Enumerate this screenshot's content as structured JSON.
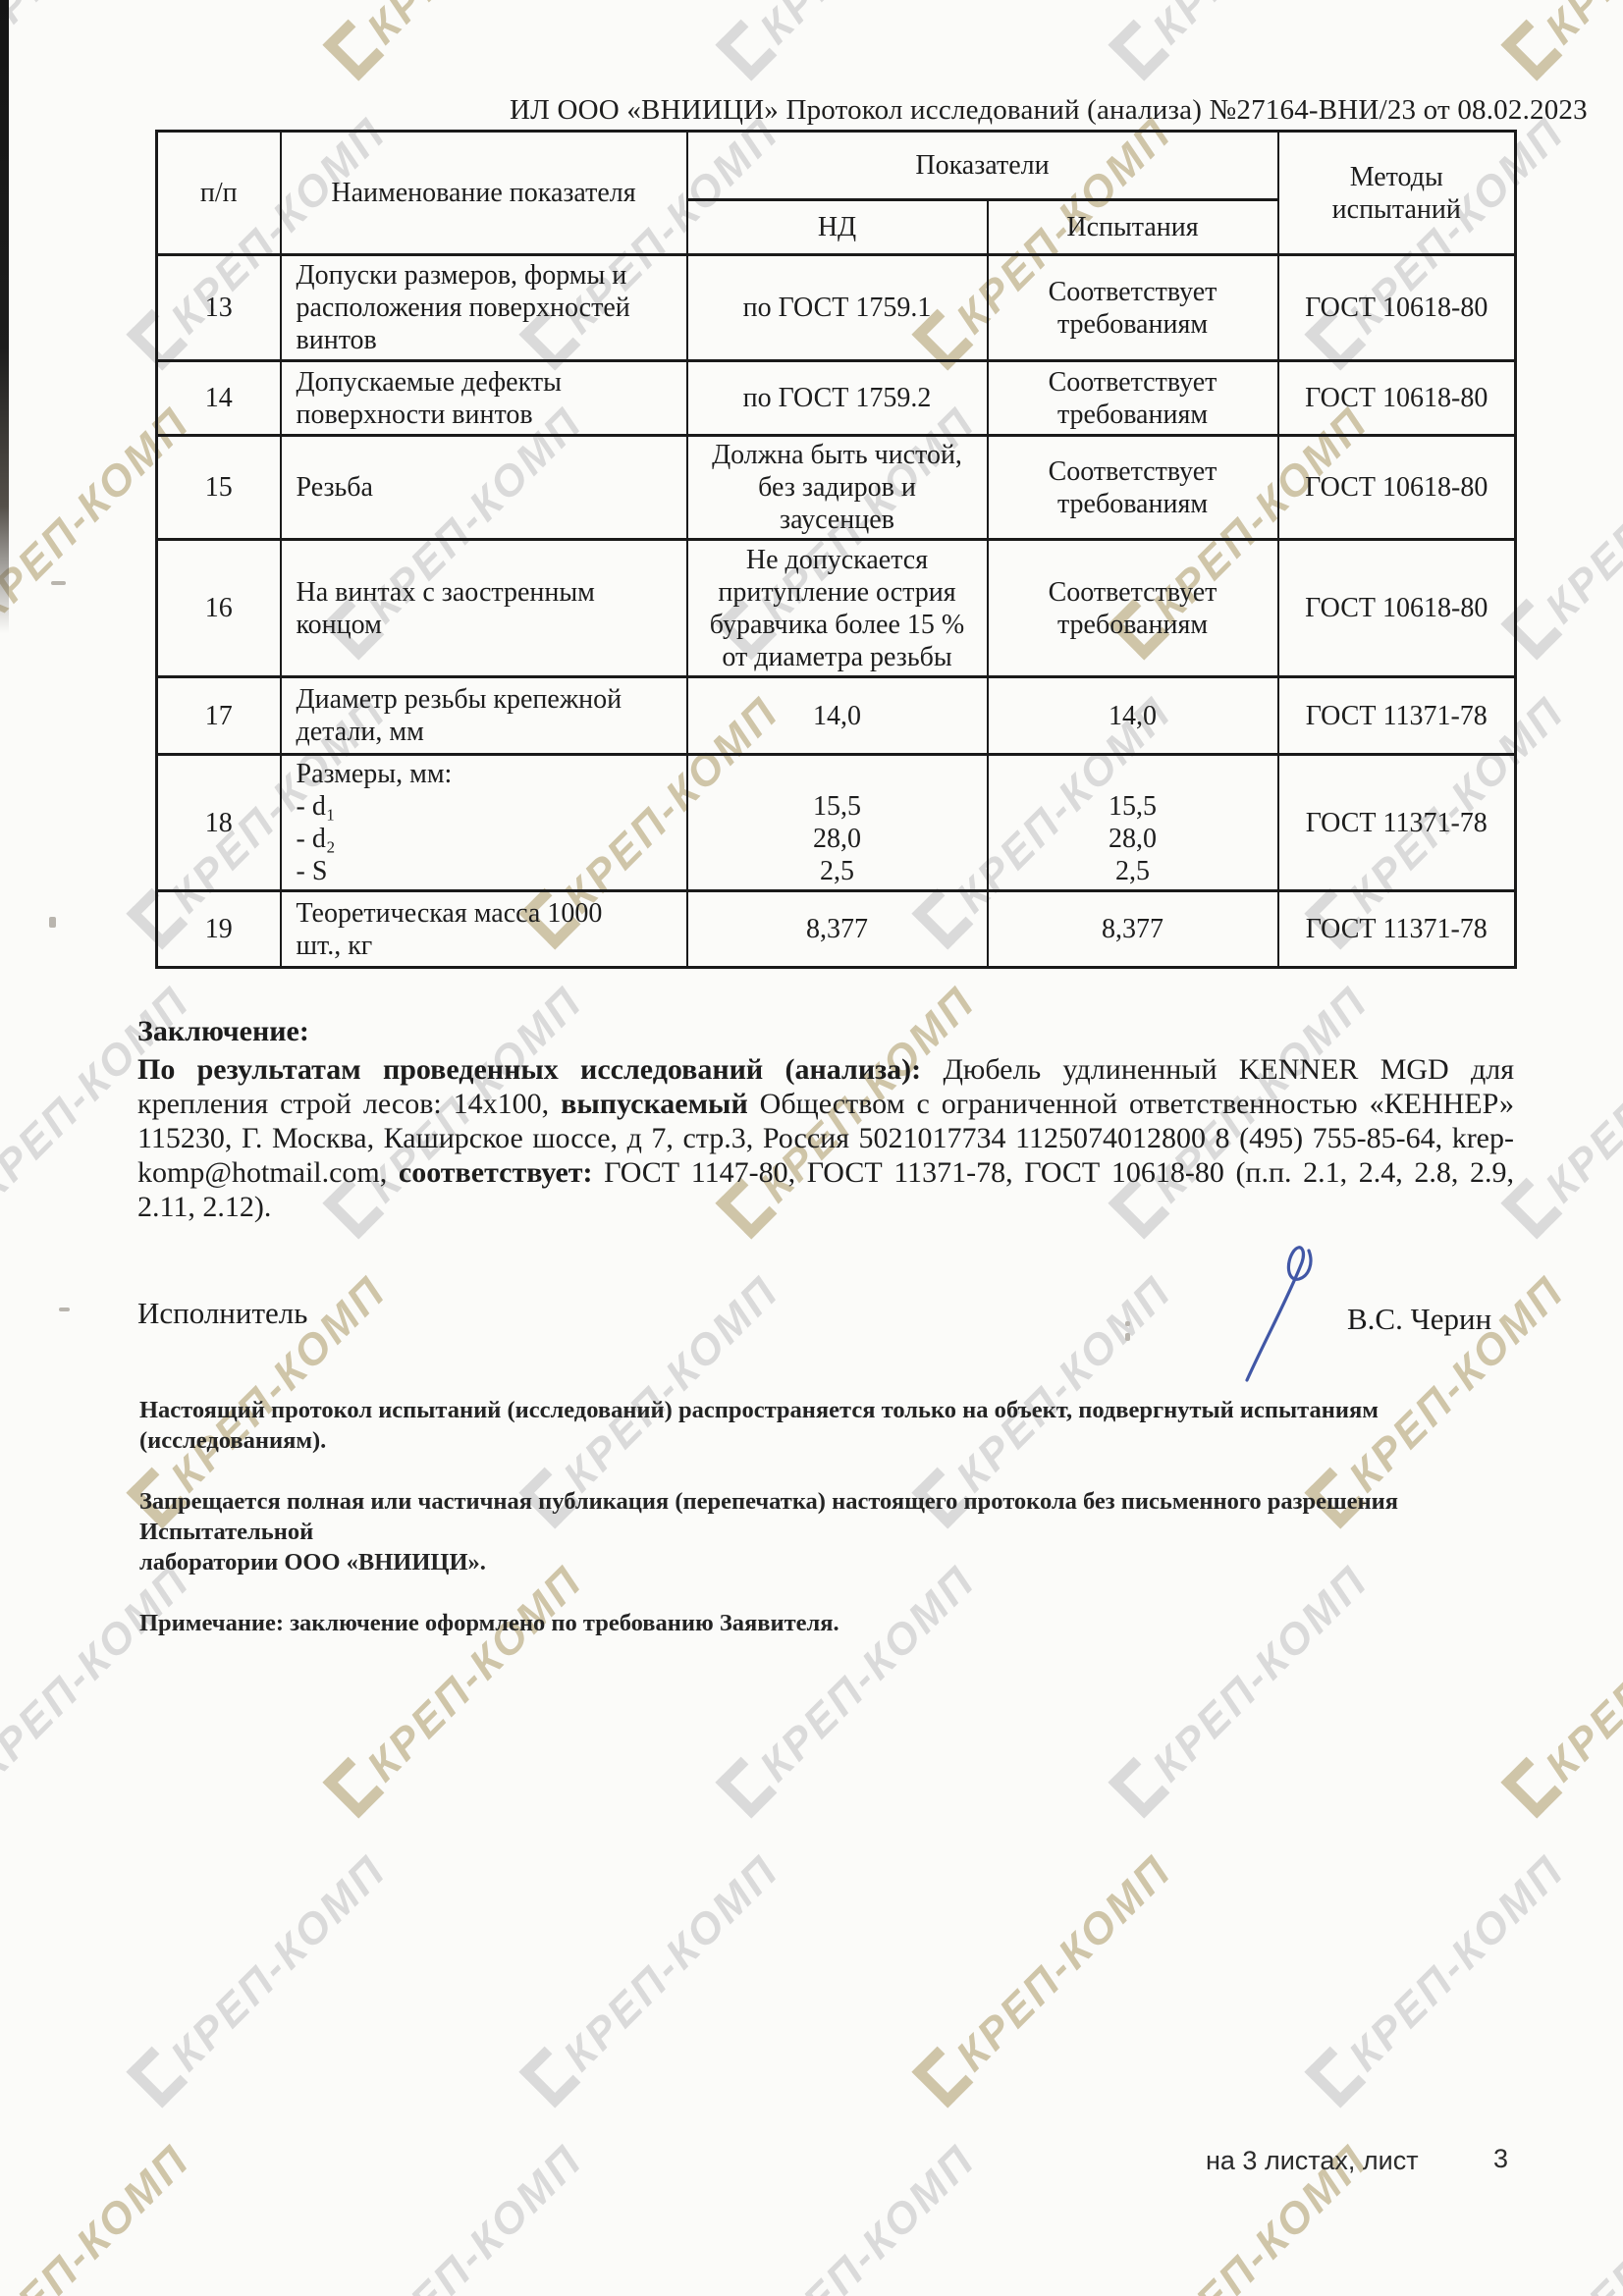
{
  "page": {
    "title": "ИЛ ООО «ВНИИЦИ» Протокол исследований (анализа)  №27164-ВНИ/23 от  08.02.2023",
    "footer_label": "на 3 листах, лист",
    "footer_page": "3"
  },
  "watermark": {
    "text": "КРЕП-КОМП",
    "color_gray": "#dadada",
    "color_tan": "#cfc5a8"
  },
  "table": {
    "header": {
      "num": "п/п",
      "name": "Наименование показателя",
      "indicators": "Показатели",
      "nd": "НД",
      "test": "Испытания",
      "methods": "Методы\nиспытаний"
    },
    "rows": [
      {
        "num": "13",
        "name": "Допуски размеров, формы и\nрасположения поверхностей\nвинтов",
        "nd": "по ГОСТ 1759.1",
        "test": "Соответствует\nтребованиям",
        "method": "ГОСТ 10618-80"
      },
      {
        "num": "14",
        "name": "Допускаемые дефекты\nповерхности винтов",
        "nd": "по ГОСТ 1759.2",
        "test": "Соответствует\nтребованиям",
        "method": "ГОСТ 10618-80"
      },
      {
        "num": "15",
        "name": "Резьба",
        "nd": "Должна быть чистой,\nбез задиров и\nзаусенцев",
        "test": "Соответствует\nтребованиям",
        "method": "ГОСТ 10618-80"
      },
      {
        "num": "16",
        "name": "На винтах с заостренным\nконцом",
        "nd": "Не допускается\nпритупление острия\nбуравчика более 15 %\nот диаметра резьбы",
        "test": "Соответствует\nтребованиям",
        "method": "ГОСТ 10618-80"
      },
      {
        "num": "17",
        "name": "Диаметр резьбы крепежной\nдетали, мм",
        "nd": "14,0",
        "test": "14,0",
        "method": "ГОСТ 11371-78"
      },
      {
        "num": "18",
        "name": "Размеры, мм:\n- d₁\n- d₂\n- S",
        "nd": "\n15,5\n28,0\n2,5",
        "test": "\n15,5\n28,0\n2,5",
        "method": "ГОСТ 11371-78"
      },
      {
        "num": "19",
        "name": "Теоретическая масса 1000\nшт., кг",
        "nd": "8,377",
        "test": "8,377",
        "method": "ГОСТ 11371-78"
      }
    ]
  },
  "conclusion": {
    "heading": "Заключение:",
    "bold1": "По результатам проведенных исследований (анализа):",
    "text1": " Дюбель удлиненный KENNER MGD для крепления строй лесов: 14x100, ",
    "bold2": "выпускаемый",
    "text2": " Обществом с ограниченной ответственностью «КЕННЕР» 115230, Г. Москва, Каширское шоссе, д 7, стр.3, Россия 5021017734 1125074012800 8 (495) 755-85-64, krep-komp@hotmail.com, ",
    "bold3": "соответствует:",
    "text3": " ГОСТ 1147-80, ГОСТ 11371-78, ГОСТ 10618-80 (п.п. 2.1, 2.4, 2.8, 2.9, 2.11, 2.12)."
  },
  "signature": {
    "role": "Исполнитель",
    "name": "В.С. Черин"
  },
  "notes": [
    "Настоящий протокол испытаний (исследований) распространяется только на объект, подвергнутый испытаниям (исследованиям).",
    "Запрещается полная или частичная публикация (перепечатка) настоящего протокола без письменного разрешения Испытательной\nлаборатории  ООО «ВНИИЦИ».",
    "Примечание: заключение оформлено по требованию Заявителя."
  ]
}
